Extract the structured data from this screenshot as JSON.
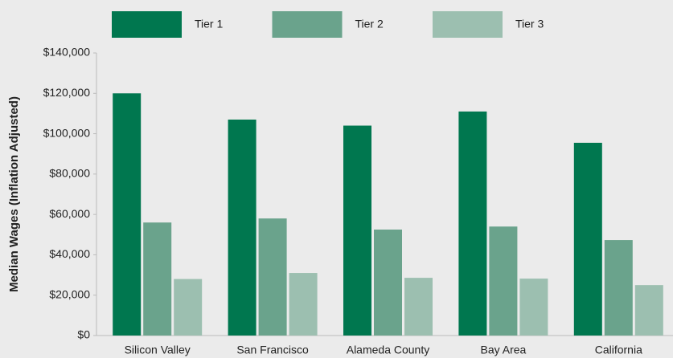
{
  "chart_data": {
    "type": "bar",
    "y_label": "Median Wages (Inflation Adjusted)",
    "categories": [
      "Silicon Valley",
      "San Francisco",
      "Alameda County",
      "Bay Area",
      "California"
    ],
    "series": [
      {
        "name": "Tier 1",
        "color": "#00774f",
        "values": [
          120000,
          107000,
          104000,
          111000,
          95500
        ]
      },
      {
        "name": "Tier 2",
        "color": "#6aa38c",
        "values": [
          56000,
          58000,
          52500,
          54000,
          47300
        ]
      },
      {
        "name": "Tier 3",
        "color": "#9cbfb0",
        "values": [
          28000,
          31000,
          28600,
          28200,
          25000
        ]
      }
    ],
    "ylim": [
      0,
      140000
    ],
    "yticks": [
      {
        "value": 0,
        "label": "$0"
      },
      {
        "value": 20000,
        "label": "$20,000"
      },
      {
        "value": 40000,
        "label": "$40,000"
      },
      {
        "value": 60000,
        "label": "$60,000"
      },
      {
        "value": 80000,
        "label": "$80,000"
      },
      {
        "value": 100000,
        "label": "$100,000"
      },
      {
        "value": 120000,
        "label": "$120,000"
      },
      {
        "value": 140000,
        "label": "$140,000"
      }
    ],
    "grid": false
  }
}
